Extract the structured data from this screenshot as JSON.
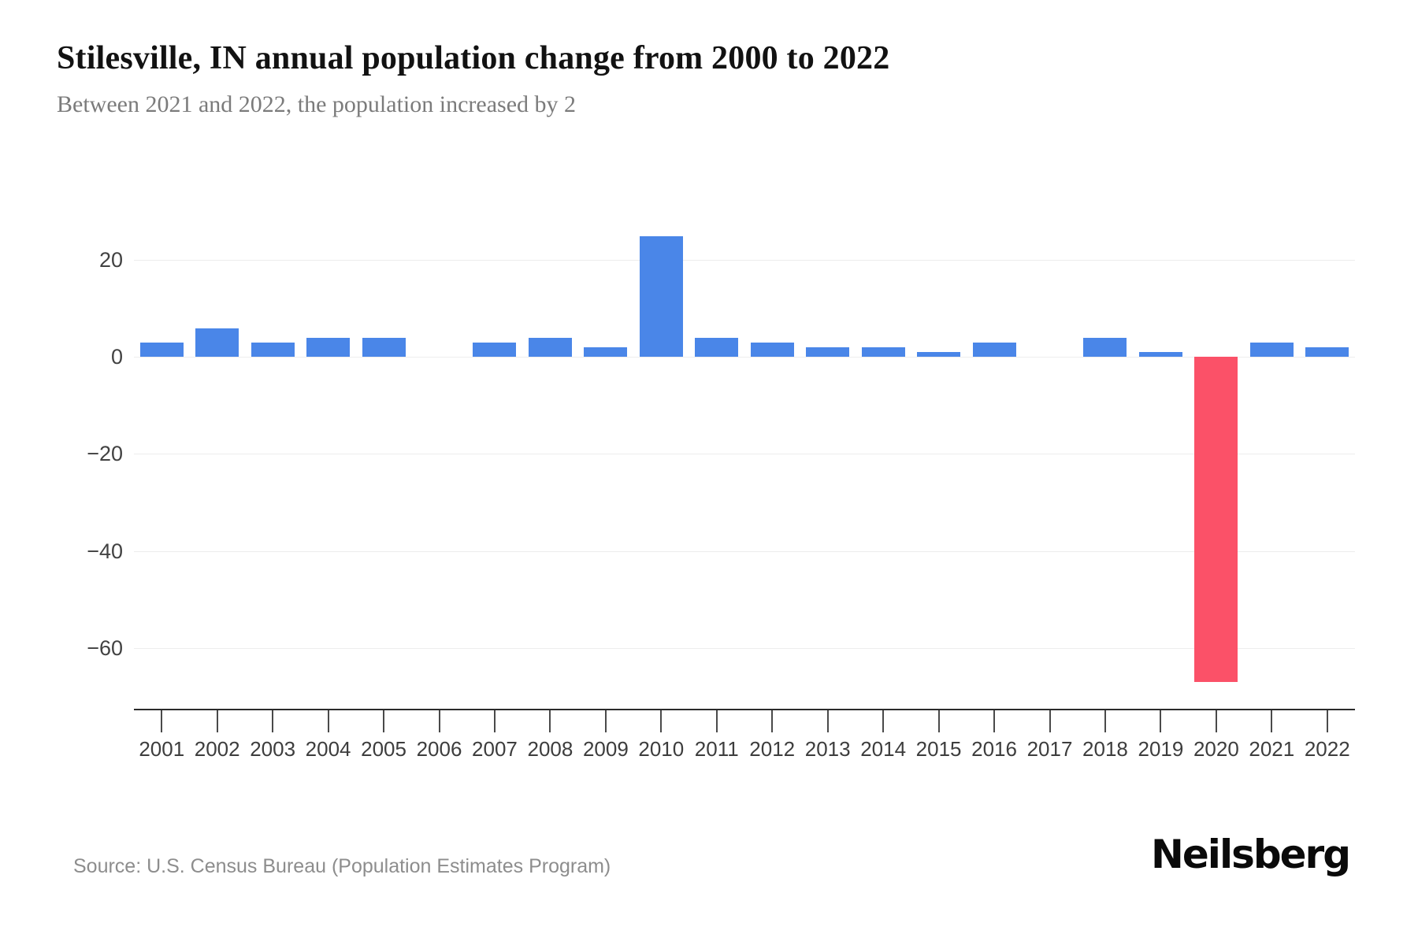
{
  "header": {
    "title": "Stilesville, IN annual population change from 2000 to 2022",
    "subtitle": "Between 2021 and 2022, the population increased by 2"
  },
  "chart_data": {
    "type": "bar",
    "title": "Stilesville, IN annual population change from 2000 to 2022",
    "categories": [
      "2001",
      "2002",
      "2003",
      "2004",
      "2005",
      "2006",
      "2007",
      "2008",
      "2009",
      "2010",
      "2011",
      "2012",
      "2013",
      "2014",
      "2015",
      "2016",
      "2017",
      "2018",
      "2019",
      "2020",
      "2021",
      "2022"
    ],
    "values": [
      3,
      6,
      3,
      4,
      4,
      0,
      3,
      4,
      2,
      25,
      4,
      3,
      2,
      2,
      1,
      3,
      0,
      4,
      1,
      -67,
      3,
      2
    ],
    "xlabel": "",
    "ylabel": "",
    "yticks": [
      20,
      0,
      -20,
      -40,
      -60
    ],
    "ylim": [
      -72.6,
      35.2
    ],
    "grid": true,
    "legend": "none",
    "colors": {
      "positive_bar": "#4a86e8",
      "negative_bar": "#fb5168"
    }
  },
  "footer": {
    "source": "Source: U.S. Census Bureau (Population Estimates Program)",
    "brand": "Neilsberg"
  }
}
